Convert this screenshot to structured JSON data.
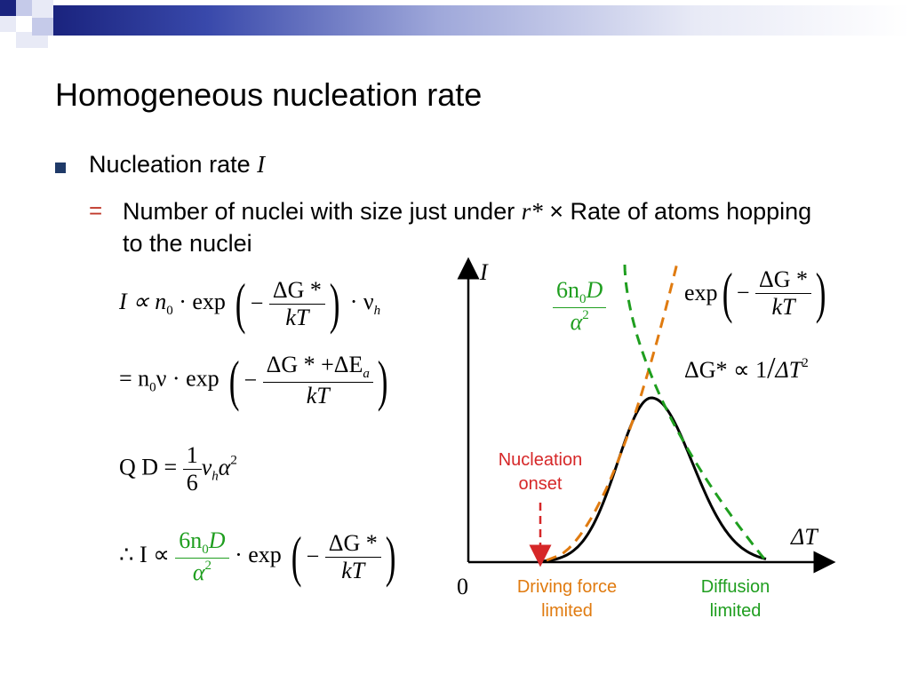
{
  "slide": {
    "title": "Homogeneous nucleation rate",
    "bullet": {
      "text": "Nucleation rate ",
      "symbol": "I"
    },
    "sub_bullet": {
      "marker": "=",
      "text_part1": "Number of nuclei with size just under ",
      "symbol": "r*",
      "text_part2": " × Rate of atoms hopping to the nuclei"
    }
  },
  "equations": {
    "eq1": {
      "lhs": "I ∝ n",
      "n_sub": "0",
      "exp": "· exp",
      "num": "ΔG *",
      "den": "kT",
      "tail": "· ν",
      "tail_sub": "h"
    },
    "eq2": {
      "lhs": "= n",
      "n_sub": "0",
      "nu": "ν · exp",
      "num": "ΔG * +ΔE",
      "num_sub": "a",
      "den": "kT"
    },
    "eq3": {
      "lhs": "Q D =",
      "num": "1",
      "den": "6",
      "nu": "ν",
      "nu_sub": "h",
      "alpha": "α",
      "sup": "2"
    },
    "eq4": {
      "lhs": "∴ I ∝",
      "frac_num": "6n",
      "frac_num_sub": "0",
      "frac_num_D": "D",
      "frac_den": "α",
      "frac_den_sup": "2",
      "exp": "· exp",
      "num": "ΔG *",
      "den": "kT"
    }
  },
  "chart_data": {
    "type": "line",
    "title": "",
    "xlabel": "ΔT",
    "ylabel": "I",
    "origin_label": "0",
    "series": [
      {
        "name": "",
        "style": "solid",
        "color": "#000000",
        "shape": "bell"
      },
      {
        "name": "",
        "style": "dashed",
        "color": "#e07b10",
        "shape": "rising"
      },
      {
        "name": "",
        "style": "dashed",
        "color": "#1f9e1f",
        "shape": "falling"
      }
    ],
    "annotations": {
      "green_formula": {
        "num": "6n",
        "num_sub": "0",
        "num_D": "D",
        "den": "α",
        "den_sup": "2"
      },
      "exp_formula": {
        "exp": "exp",
        "num": "ΔG *",
        "den": "kT"
      },
      "dg_relation": {
        "text": "ΔG* ∝ 1",
        "slash": "/",
        "dt": "ΔT",
        "sup": "2"
      },
      "nucleation_onset": "Nucleation\nonset",
      "driving_force_limited": "Driving force\nlimited",
      "diffusion_limited": "Diffusion\nlimited"
    },
    "colors": {
      "green": "#1f9e1f",
      "orange": "#e07b10",
      "red": "#d62728"
    }
  }
}
